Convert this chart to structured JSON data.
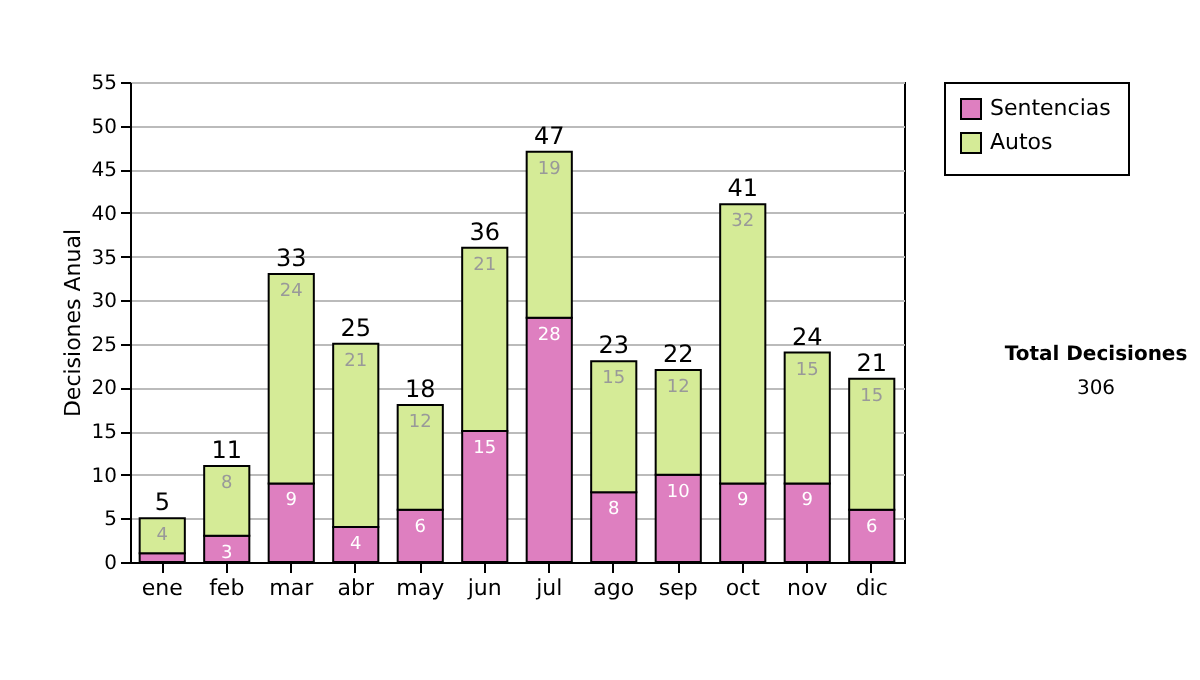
{
  "chart_data": {
    "type": "bar",
    "stacked": true,
    "ylabel": "Decisiones Anual",
    "categories": [
      "ene",
      "feb",
      "mar",
      "abr",
      "may",
      "jun",
      "jul",
      "ago",
      "sep",
      "oct",
      "nov",
      "dic"
    ],
    "series": [
      {
        "name": "Sentencias",
        "color": "#de7fc0",
        "values": [
          1,
          3,
          9,
          4,
          6,
          15,
          28,
          8,
          10,
          9,
          9,
          6
        ],
        "value_labels": [
          null,
          "3",
          "9",
          "4",
          "6",
          "15",
          "28",
          "8",
          "10",
          "9",
          "9",
          "6"
        ]
      },
      {
        "name": "Autos",
        "color": "#d5eb97",
        "values": [
          4,
          8,
          24,
          21,
          12,
          21,
          19,
          15,
          12,
          32,
          15,
          15
        ],
        "value_labels": [
          "4",
          "8",
          "24",
          "21",
          "12",
          "21",
          "19",
          "15",
          "12",
          "32",
          "15",
          "15"
        ]
      }
    ],
    "totals": [
      "5",
      "11",
      "33",
      "25",
      "18",
      "36",
      "47",
      "23",
      "22",
      "41",
      "24",
      "21"
    ],
    "ylim": [
      0,
      55
    ],
    "yticks": [
      0,
      5,
      10,
      15,
      20,
      25,
      30,
      35,
      40,
      45,
      50,
      55
    ],
    "grid": "y",
    "legend": "right",
    "annotations": [
      "Total Decisiones",
      "306"
    ]
  }
}
